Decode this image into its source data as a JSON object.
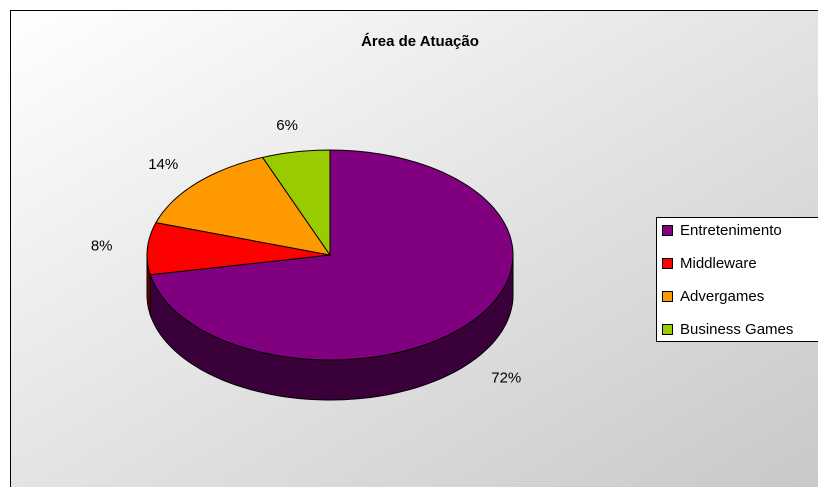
{
  "chart_data": {
    "type": "pie",
    "title": "Área de Atuação",
    "categories": [
      "Entretenimento",
      "Middleware",
      "Advergames",
      "Business Games"
    ],
    "values": [
      72,
      8,
      14,
      6
    ],
    "value_labels": [
      "72%",
      "8%",
      "14%",
      "6%"
    ],
    "colors": [
      "#800080",
      "#ff0000",
      "#ff9900",
      "#99cc00"
    ],
    "legend": "right"
  }
}
